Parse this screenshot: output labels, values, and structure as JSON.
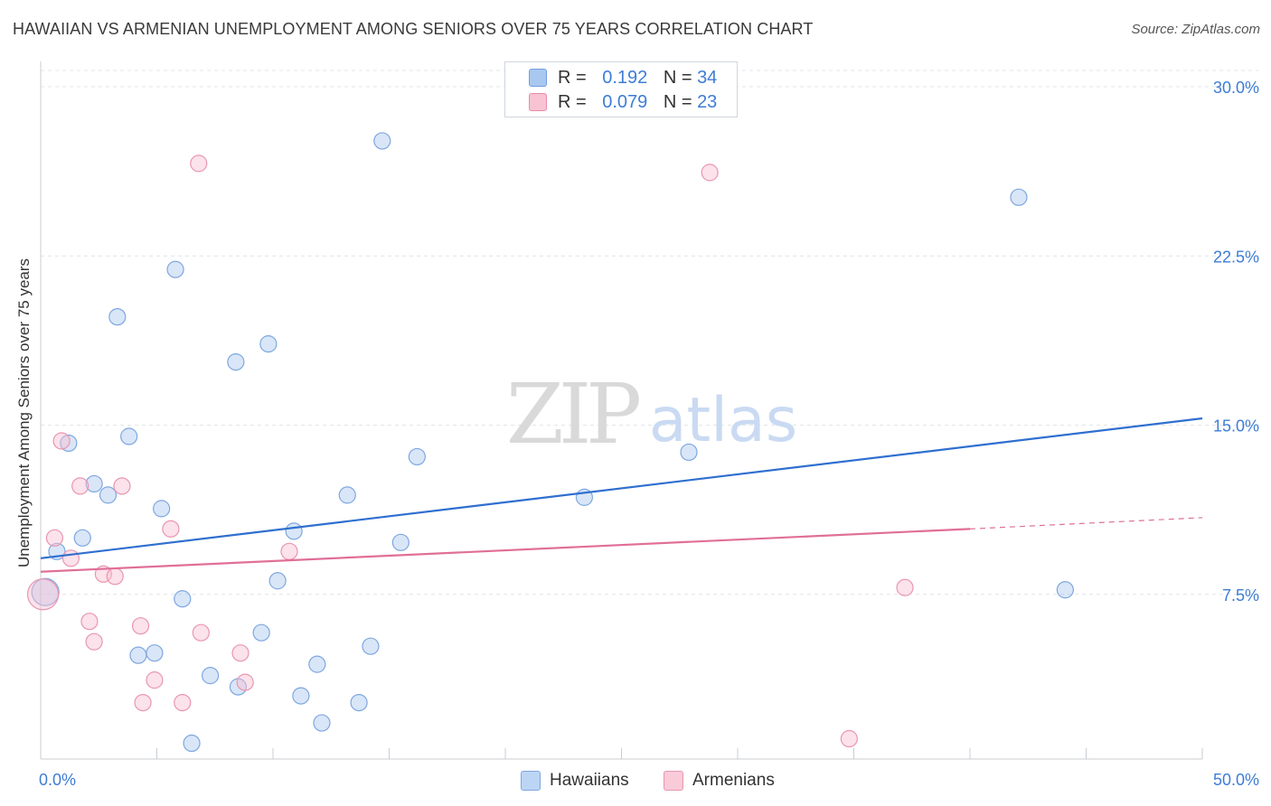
{
  "title": "HAWAIIAN VS ARMENIAN UNEMPLOYMENT AMONG SENIORS OVER 75 YEARS CORRELATION CHART",
  "source": "Source: ZipAtlas.com",
  "watermark": {
    "part1": "ZIP",
    "part2": "atlas"
  },
  "legend": {
    "r_label": "R =",
    "n_label": "N =",
    "rows": [
      {
        "r": "0.192",
        "n": "34",
        "color": "#a9c8f0",
        "border": "#6f9ee0"
      },
      {
        "r": "0.079",
        "n": "23",
        "color": "#f8c3d3",
        "border": "#e88aa8"
      }
    ]
  },
  "bottom_legend": [
    {
      "label": "Hawaiians",
      "color": "#bcd5f5",
      "border": "#7ea7e0"
    },
    {
      "label": "Armenians",
      "color": "#f9cbd9",
      "border": "#e996b1"
    }
  ],
  "colors": {
    "hawaiians_fill": "rgba(170,200,240,0.45)",
    "hawaiians_stroke": "#7ea7e0",
    "armenians_fill": "rgba(248,190,208,0.45)",
    "armenians_stroke": "#e996b1",
    "hawaiians_line": "#2f6fd0",
    "armenians_line": "#e06f98",
    "tick_label": "#3d7dd6"
  },
  "chart_data": {
    "type": "scatter",
    "title": "HAWAIIAN VS ARMENIAN UNEMPLOYMENT AMONG SENIORS OVER 75 YEARS CORRELATION CHART",
    "xlabel": "",
    "ylabel": "Unemployment Among Seniors over 75 years",
    "xlim": [
      0,
      50
    ],
    "ylim": [
      0,
      30
    ],
    "x_tick_labels": [
      "0.0%",
      "50.0%"
    ],
    "y_ticks": [
      7.5,
      15.0,
      22.5,
      30.0
    ],
    "y_tick_labels": [
      "7.5%",
      "15.0%",
      "22.5%",
      "30.0%"
    ],
    "grid": true,
    "series": [
      {
        "name": "Hawaiians",
        "r": 0.192,
        "n": 34,
        "points": [
          [
            0.2,
            7.6
          ],
          [
            0.7,
            9.4
          ],
          [
            1.2,
            14.2
          ],
          [
            1.8,
            10.0
          ],
          [
            2.3,
            12.4
          ],
          [
            2.9,
            11.9
          ],
          [
            3.3,
            19.8
          ],
          [
            3.8,
            14.5
          ],
          [
            4.2,
            4.8
          ],
          [
            4.9,
            4.9
          ],
          [
            5.2,
            11.3
          ],
          [
            5.8,
            21.9
          ],
          [
            6.1,
            7.3
          ],
          [
            6.5,
            0.9
          ],
          [
            7.3,
            3.9
          ],
          [
            8.4,
            17.8
          ],
          [
            8.5,
            3.4
          ],
          [
            9.5,
            5.8
          ],
          [
            9.8,
            18.6
          ],
          [
            10.2,
            8.1
          ],
          [
            10.9,
            10.3
          ],
          [
            11.2,
            3.0
          ],
          [
            11.9,
            4.4
          ],
          [
            12.1,
            1.8
          ],
          [
            13.2,
            11.9
          ],
          [
            13.7,
            2.7
          ],
          [
            14.2,
            5.2
          ],
          [
            15.5,
            9.8
          ],
          [
            14.7,
            27.6
          ],
          [
            16.2,
            13.6
          ],
          [
            23.4,
            11.8
          ],
          [
            27.9,
            13.8
          ],
          [
            42.1,
            25.1
          ],
          [
            44.1,
            7.7
          ]
        ],
        "trend": {
          "x": [
            0,
            50
          ],
          "y": [
            9.1,
            15.3
          ]
        }
      },
      {
        "name": "Armenians",
        "r": 0.079,
        "n": 23,
        "points": [
          [
            0.1,
            7.5
          ],
          [
            0.6,
            10.0
          ],
          [
            0.9,
            14.3
          ],
          [
            1.3,
            9.1
          ],
          [
            1.7,
            12.3
          ],
          [
            2.1,
            6.3
          ],
          [
            2.3,
            5.4
          ],
          [
            2.7,
            8.4
          ],
          [
            3.2,
            8.3
          ],
          [
            3.5,
            12.3
          ],
          [
            4.3,
            6.1
          ],
          [
            4.4,
            2.7
          ],
          [
            4.9,
            3.7
          ],
          [
            5.6,
            10.4
          ],
          [
            6.1,
            2.7
          ],
          [
            6.9,
            5.8
          ],
          [
            6.8,
            26.6
          ],
          [
            8.6,
            4.9
          ],
          [
            8.8,
            3.6
          ],
          [
            10.7,
            9.4
          ],
          [
            28.8,
            26.2
          ],
          [
            37.2,
            7.8
          ],
          [
            34.8,
            1.1
          ]
        ],
        "trend": {
          "x": [
            0,
            40
          ],
          "y": [
            8.5,
            10.4
          ],
          "dashed_extension": {
            "x": [
              40,
              50
            ],
            "y": [
              10.4,
              10.9
            ]
          }
        }
      }
    ]
  }
}
